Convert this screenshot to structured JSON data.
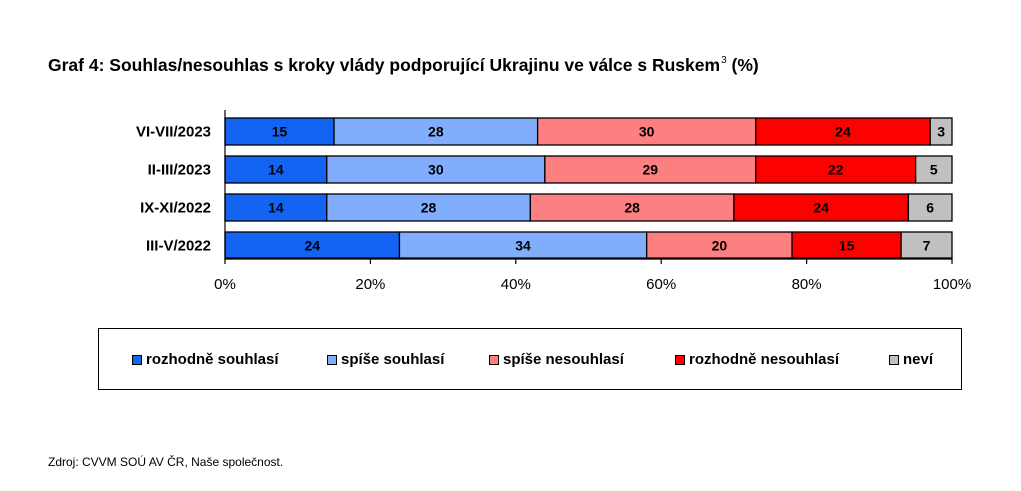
{
  "title": {
    "text": "Graf 4: Souhlas/nesouhlas s kroky vlády podporující Ukrajinu ve válce s Ruskem",
    "footnote_ref": "3",
    "suffix": " (%)"
  },
  "source": "Zdroj: CVVM SOÚ AV ČR, Naše společnost.",
  "chart_data": {
    "type": "bar",
    "orientation": "horizontal",
    "stacked": "percent",
    "categories": [
      "VI-VII/2023",
      "II-III/2023",
      "IX-XI/2022",
      "III-V/2022"
    ],
    "series": [
      {
        "name": "rozhodně souhlasí",
        "color": "#1464f4",
        "values": [
          15,
          14,
          14,
          24
        ]
      },
      {
        "name": "spíše souhlasí",
        "color": "#80aefd",
        "values": [
          28,
          30,
          28,
          34
        ]
      },
      {
        "name": "spíše nesouhlasí",
        "color": "#fd7f7f",
        "values": [
          30,
          29,
          28,
          20
        ]
      },
      {
        "name": "rozhodně nesouhlasí",
        "color": "#fd0000",
        "values": [
          24,
          22,
          24,
          15
        ]
      },
      {
        "name": "neví",
        "color": "#c0c0c0",
        "values": [
          3,
          5,
          6,
          7
        ]
      }
    ],
    "xlim": [
      0,
      100
    ],
    "x_ticks": [
      "0%",
      "20%",
      "40%",
      "60%",
      "80%",
      "100%"
    ],
    "grid": false,
    "legend_position": "bottom",
    "data_labels": true
  }
}
